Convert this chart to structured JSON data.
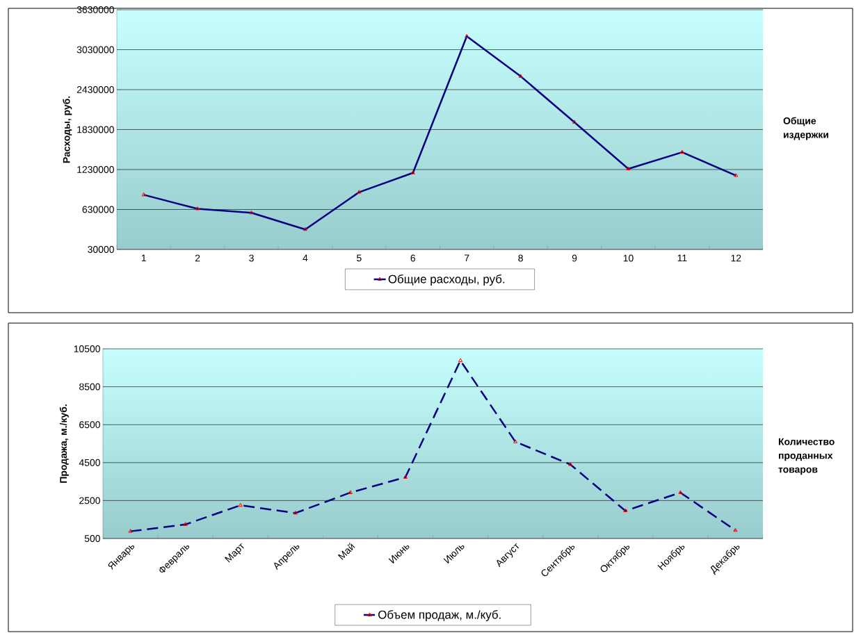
{
  "chart_data": [
    {
      "type": "line",
      "ylabel": "Расходы, руб.",
      "annotations": [
        "Общие издержки"
      ],
      "categories": [
        "1",
        "2",
        "3",
        "4",
        "5",
        "6",
        "7",
        "8",
        "9",
        "10",
        "11",
        "12"
      ],
      "series": [
        {
          "name": "Общие расходы, руб.",
          "color": "#000080",
          "values": [
            850000,
            640000,
            580000,
            330000,
            890000,
            1180000,
            3230000,
            2630000,
            1940000,
            1240000,
            1490000,
            1140000
          ]
        }
      ],
      "ylim": [
        30000,
        3630000
      ],
      "yticks": [
        30000,
        630000,
        1230000,
        1830000,
        2430000,
        3030000,
        3630000
      ],
      "grid": "y",
      "legend": "bottom",
      "marker": "triangle",
      "line_style": "solid"
    },
    {
      "type": "line",
      "ylabel": "Продажа, м./куб.",
      "annotations": [
        "Количество проданных товаров"
      ],
      "categories": [
        "Январь",
        "Февраль",
        "Март",
        "Апрель",
        "Май",
        "Июнь",
        "Июль",
        "Август",
        "Сентябрь",
        "Октябрь",
        "Ноябрь",
        "Декабрь"
      ],
      "series": [
        {
          "name": "Объем продаж, м./куб.",
          "color": "#000080",
          "values": [
            880,
            1240,
            2250,
            1840,
            2920,
            3730,
            9880,
            5600,
            4400,
            1960,
            2920,
            930
          ]
        }
      ],
      "ylim": [
        500,
        10500
      ],
      "yticks": [
        500,
        2500,
        4500,
        6500,
        8500,
        10500
      ],
      "grid": "y",
      "legend": "bottom",
      "marker": "triangle",
      "line_style": "dashed"
    }
  ]
}
